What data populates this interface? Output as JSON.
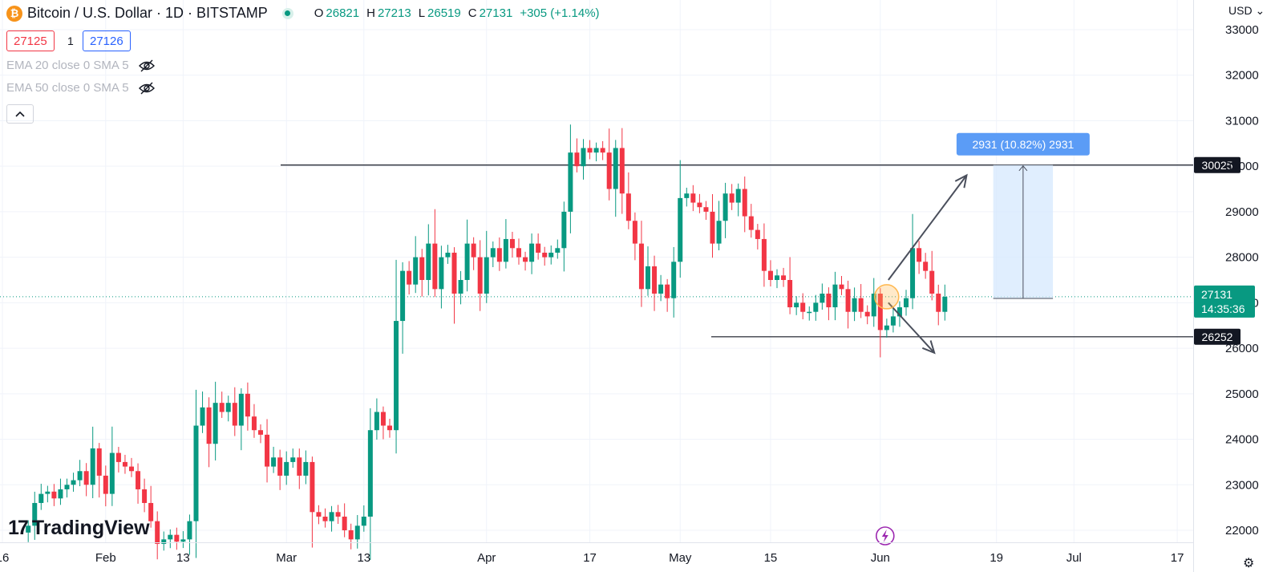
{
  "header": {
    "title": "Bitcoin / U.S. Dollar · 1D · BITSTAMP",
    "symbol_icon": "bitcoin-icon",
    "ohlc": {
      "o_label": "O",
      "o": "26821",
      "h_label": "H",
      "h": "27213",
      "l_label": "L",
      "l": "26519",
      "c_label": "C",
      "c": "27131",
      "change": "+305 (+1.14%)"
    },
    "bid": "27125",
    "qty": "1",
    "ask": "27126"
  },
  "indicators": [
    {
      "label": "EMA 20 close 0 SMA 5",
      "icon": "eye-off-icon"
    },
    {
      "label": "EMA 50 close 0 SMA 5",
      "icon": "eye-off-icon"
    }
  ],
  "collapse_icon": "chevron-up-icon",
  "logo": {
    "text": "TradingView",
    "mark": "17"
  },
  "currency": "USD",
  "settings_icon": "gear-icon",
  "colors": {
    "up": "#089981",
    "down": "#f23645",
    "grid": "#f0f3fa",
    "line": "#131722",
    "range_fill": "#d6e8fd",
    "range_label": "#5b9cf6",
    "circle": "#ffb74d"
  },
  "chart_data": {
    "type": "candlestick",
    "ylim": [
      21800,
      33400
    ],
    "y_ticks": [
      22000,
      23000,
      24000,
      25000,
      26000,
      27000,
      28000,
      29000,
      30000,
      31000,
      32000,
      33000
    ],
    "x_labels": [
      {
        "date": "2023-01-16",
        "label": "16"
      },
      {
        "date": "2023-02-01",
        "label": "Feb"
      },
      {
        "date": "2023-02-13",
        "label": "13"
      },
      {
        "date": "2023-03-01",
        "label": "Mar"
      },
      {
        "date": "2023-03-13",
        "label": "13"
      },
      {
        "date": "2023-04-01",
        "label": "Apr"
      },
      {
        "date": "2023-04-17",
        "label": "17"
      },
      {
        "date": "2023-05-01",
        "label": "May"
      },
      {
        "date": "2023-05-15",
        "label": "15"
      },
      {
        "date": "2023-06-01",
        "label": "Jun"
      },
      {
        "date": "2023-06-19",
        "label": "19"
      },
      {
        "date": "2023-07-01",
        "label": "Jul"
      },
      {
        "date": "2023-07-17",
        "label": "17"
      }
    ],
    "first_date": "2023-01-20",
    "closes": [
      22100,
      22600,
      22800,
      22850,
      22700,
      22900,
      23000,
      23100,
      23300,
      23000,
      23800,
      23200,
      22800,
      23700,
      23500,
      23400,
      23300,
      22900,
      22600,
      22200,
      21700,
      21800,
      21900,
      21750,
      21800,
      22200,
      24300,
      24700,
      23900,
      24800,
      24600,
      24800,
      24300,
      25000,
      24500,
      24200,
      24100,
      23400,
      23600,
      23200,
      23500,
      23600,
      23200,
      23500,
      22400,
      22300,
      22200,
      22400,
      22300,
      22000,
      21800,
      22100,
      22300,
      24200,
      24600,
      24300,
      24200,
      26600,
      27700,
      27400,
      28000,
      27500,
      28300,
      27300,
      28000,
      28100,
      27200,
      27500,
      28300,
      28000,
      27200,
      28000,
      28200,
      27900,
      28400,
      28200,
      28000,
      27900,
      28300,
      28100,
      28000,
      28100,
      28200,
      29000,
      30300,
      30000,
      30400,
      30300,
      30400,
      30300,
      29500,
      30400,
      29400,
      28800,
      28300,
      27300,
      27800,
      27200,
      27400,
      27100,
      27900,
      29300,
      29400,
      29200,
      29100,
      29000,
      28300,
      28800,
      29400,
      29200,
      29500,
      28900,
      28600,
      28400,
      27700,
      27500,
      27600,
      27500,
      26900,
      27000,
      26800,
      26800,
      27000,
      27200,
      26900,
      27400,
      27300,
      26800,
      27100,
      26800,
      26700,
      27200,
      26400,
      26500,
      26700,
      26900,
      27100,
      28200,
      27900,
      27700,
      27200,
      26800,
      27131
    ],
    "levels": [
      {
        "value": 30025,
        "label": "30025"
      },
      {
        "value": 26252,
        "label": "26252"
      }
    ],
    "current_price": {
      "value": 27131,
      "label": "27131",
      "countdown": "14:35:36"
    },
    "measure": {
      "from": 27094,
      "to": 30025,
      "label": "2931 (10.82%) 2931",
      "start_date": "2023-06-18",
      "end_date": "2023-06-27"
    },
    "arrows": [
      {
        "from_date": "2023-06-02",
        "from_value": 27500,
        "to_date": "2023-06-14",
        "to_value": 29800
      },
      {
        "from_date": "2023-06-02",
        "from_value": 27000,
        "to_date": "2023-06-09",
        "to_value": 25900
      }
    ],
    "highlight": {
      "date": "2023-06-01",
      "value": 27131
    },
    "event_icon": {
      "date": "2023-06-01",
      "icon": "lightning-icon"
    }
  }
}
